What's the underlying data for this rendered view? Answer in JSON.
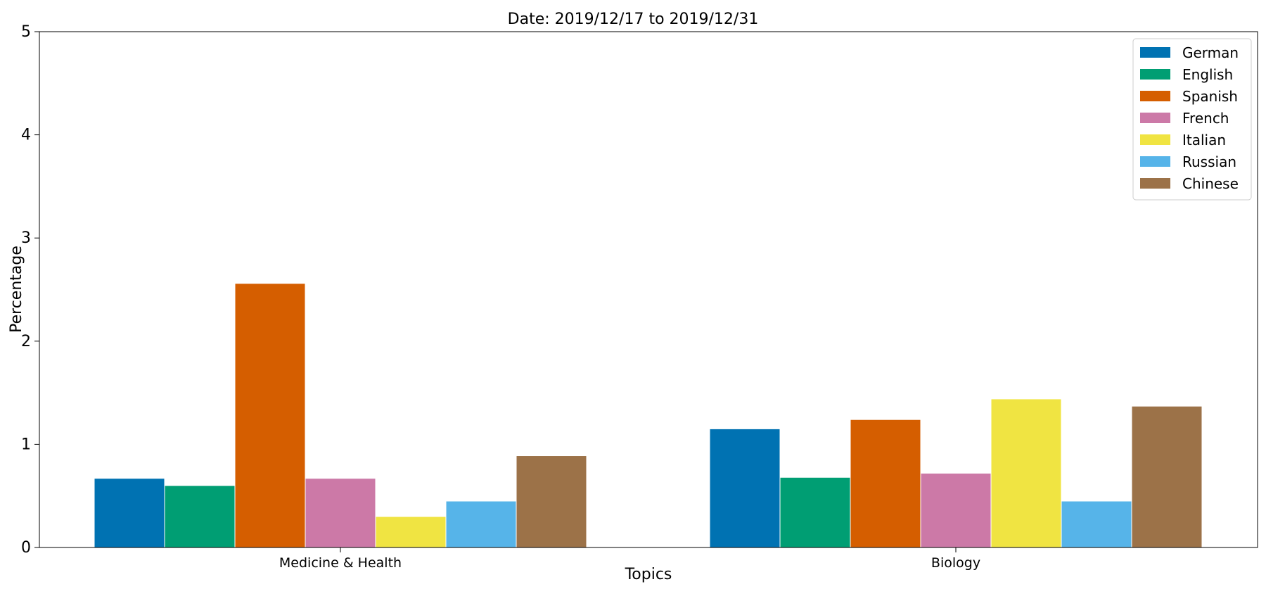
{
  "chart_data": {
    "type": "bar",
    "title": "Date: 2019/12/17 to 2019/12/31",
    "xlabel": "Topics",
    "ylabel": "Percentage",
    "ylim": [
      0,
      5
    ],
    "yticks": [
      0,
      1,
      2,
      3,
      4,
      5
    ],
    "categories": [
      "Medicine & Health",
      "Biology"
    ],
    "legend_position": "top-right",
    "grid": false,
    "series": [
      {
        "name": "German",
        "color": "#0072B2",
        "values": [
          0.67,
          1.15
        ]
      },
      {
        "name": "English",
        "color": "#009E73",
        "values": [
          0.6,
          0.68
        ]
      },
      {
        "name": "Spanish",
        "color": "#D55E00",
        "values": [
          2.56,
          1.24
        ]
      },
      {
        "name": "French",
        "color": "#CC79A7",
        "values": [
          0.67,
          0.72
        ]
      },
      {
        "name": "Italian",
        "color": "#F0E442",
        "values": [
          0.3,
          1.44
        ]
      },
      {
        "name": "Russian",
        "color": "#56B4E9",
        "values": [
          0.45,
          0.45
        ]
      },
      {
        "name": "Chinese",
        "color": "#9C7248",
        "values": [
          0.89,
          1.37
        ]
      }
    ]
  }
}
